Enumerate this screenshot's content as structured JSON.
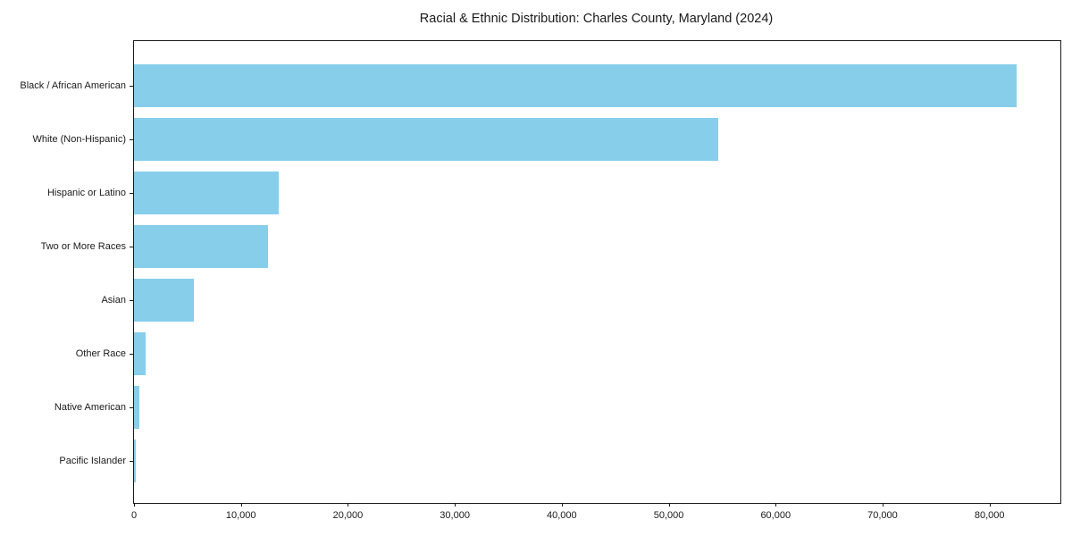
{
  "title": "Racial & Ethnic Distribution: Charles County, Maryland (2024)",
  "chart_data": {
    "type": "bar",
    "orientation": "horizontal",
    "title": "Racial & Ethnic Distribution: Charles County, Maryland (2024)",
    "categories": [
      "Black / African American",
      "White (Non-Hispanic)",
      "Hispanic or Latino",
      "Two or More Races",
      "Asian",
      "Other Race",
      "Native American",
      "Pacific Islander"
    ],
    "values": [
      82500,
      54600,
      13500,
      12500,
      5600,
      1100,
      500,
      150
    ],
    "bar_color": "#87ceeb",
    "xlabel": "",
    "ylabel": "",
    "xlim": [
      0,
      86625
    ],
    "x_ticks": [
      0,
      10000,
      20000,
      30000,
      40000,
      50000,
      60000,
      70000,
      80000
    ],
    "x_tick_labels": [
      "0",
      "10,000",
      "20,000",
      "30,000",
      "40,000",
      "50,000",
      "60,000",
      "70,000",
      "80,000"
    ],
    "grid": false,
    "legend": "none",
    "spine_color": "#1a1a1a"
  }
}
